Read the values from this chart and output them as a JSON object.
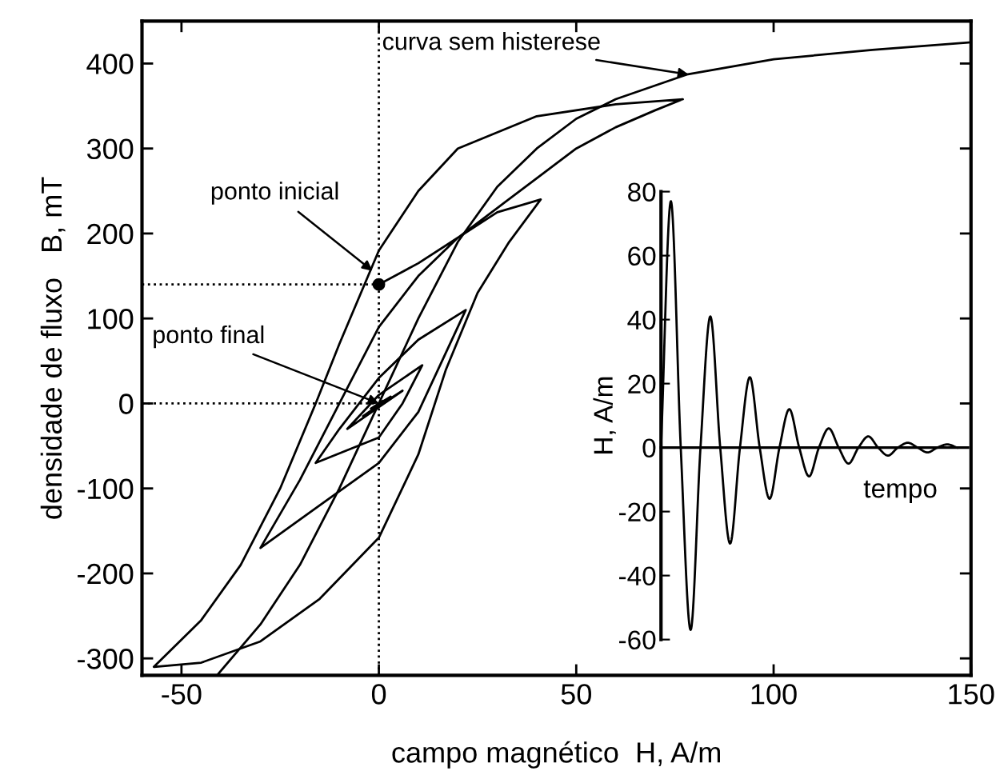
{
  "chart_data": [
    {
      "type": "line",
      "xlabel": "campo magnético  H, A/m",
      "ylabel": "densidade de fluxo   B, mT",
      "xlim": [
        -60,
        150
      ],
      "ylim": [
        -320,
        450
      ],
      "xticks": [
        -50,
        0,
        50,
        100,
        150
      ],
      "yticks": [
        -300,
        -200,
        -100,
        0,
        100,
        200,
        300,
        400
      ],
      "grid": false,
      "legend": false,
      "series": [
        {
          "x": [
            -41,
            -30,
            -20,
            -10,
            0,
            10,
            20,
            30,
            40,
            50,
            60,
            78,
            100,
            125,
            150
          ],
          "values": [
            -320,
            -260,
            -190,
            -100,
            0,
            100,
            190,
            255,
            300,
            335,
            358,
            387,
            405,
            416,
            425
          ],
          "color": "#000000"
        },
        {
          "x": [
            0,
            10,
            20,
            30,
            40,
            50,
            60,
            70,
            77,
            60,
            40,
            20,
            10,
            0,
            -10,
            -16,
            -25,
            -35,
            -45,
            -57,
            -45,
            -30,
            -15,
            0,
            10,
            17,
            25,
            33,
            41,
            30,
            20,
            10,
            0,
            -10,
            -20,
            -30,
            -15,
            0,
            10,
            16,
            22,
            10,
            0,
            -10,
            -16,
            0,
            6,
            11,
            0,
            -8,
            6,
            -4,
            3,
            -2,
            1,
            0
          ],
          "values": [
            140,
            165,
            195,
            230,
            265,
            300,
            325,
            345,
            358,
            352,
            338,
            300,
            250,
            180,
            70,
            0,
            -100,
            -190,
            -255,
            -310,
            -305,
            -280,
            -230,
            -158,
            -60,
            40,
            130,
            190,
            240,
            225,
            195,
            150,
            90,
            0,
            -90,
            -170,
            -120,
            -70,
            -10,
            50,
            110,
            75,
            30,
            -30,
            -70,
            -40,
            0,
            45,
            10,
            -30,
            15,
            -15,
            8,
            -6,
            3,
            0
          ],
          "color": "#000000"
        },
        {
          "x": [
            -60,
            0
          ],
          "values": [
            140,
            140
          ],
          "color": "#000000",
          "line_style": "dotted"
        },
        {
          "x": [
            -60,
            0
          ],
          "values": [
            0,
            0
          ],
          "color": "#000000",
          "line_style": "dotted"
        },
        {
          "type": "scatter",
          "x": [
            0
          ],
          "values": [
            140
          ],
          "color": "#000000",
          "marker": "circle"
        }
      ],
      "ref_lines": [
        {
          "axis": "x",
          "value": 0,
          "color": "#000000",
          "line_style": "dotted"
        }
      ],
      "annotations": [
        {
          "text": "ponto inicial",
          "x": -1.6,
          "y": 156
        },
        {
          "text": "ponto final",
          "x": 0,
          "y": 0
        },
        {
          "text": "curva sem histerese",
          "x": 78.5,
          "y": 387
        }
      ]
    },
    {
      "type": "line",
      "xlabel": "tempo",
      "ylabel": "H, A/m",
      "ylim": [
        -60,
        80
      ],
      "yticks": [
        -60,
        -40,
        -20,
        0,
        20,
        40,
        60,
        80
      ],
      "tick_labels": "y",
      "legend": false,
      "categories": [
        null,
        null,
        null,
        null,
        null,
        null,
        null,
        null,
        null,
        null,
        null,
        null,
        null,
        null,
        null,
        null,
        null,
        null,
        null,
        null,
        null,
        null,
        null,
        null,
        null,
        null,
        null,
        null,
        null,
        null,
        null
      ],
      "series": [
        {
          "values": [
            0,
            77,
            0,
            -57,
            0,
            41,
            0,
            -30,
            0,
            22,
            0,
            -16,
            0,
            12,
            0,
            -9,
            0,
            6,
            0,
            -5,
            0,
            3.5,
            0,
            -2.5,
            0,
            1.5,
            0,
            -1.5,
            0,
            1,
            0
          ],
          "color": "#000000"
        }
      ]
    }
  ]
}
